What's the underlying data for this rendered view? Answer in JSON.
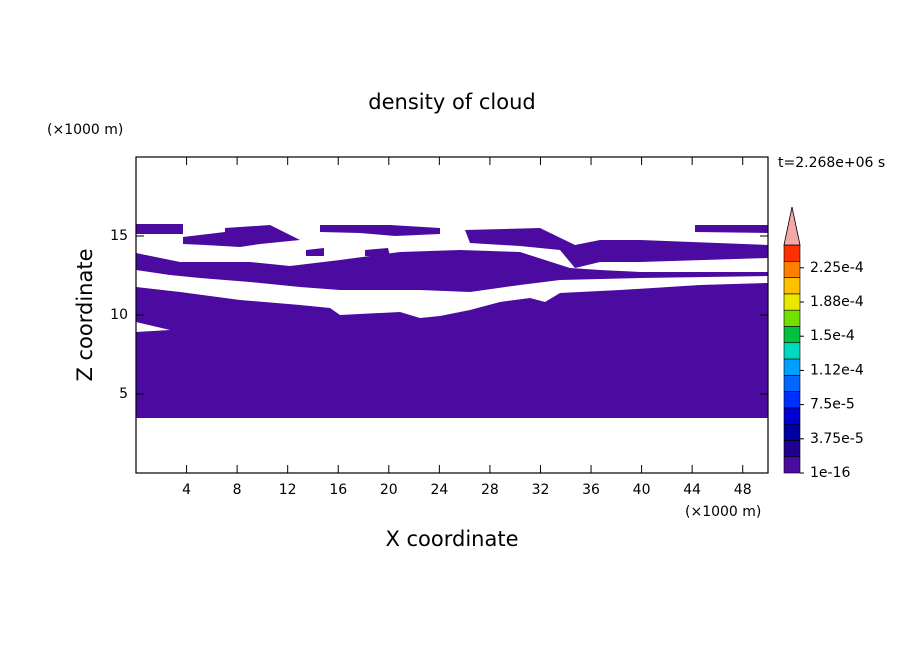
{
  "chart_data": {
    "type": "contour",
    "title": "density of cloud",
    "x_label": "X coordinate",
    "y_label": "Z coordinate",
    "x_unit_label": "(×1000 m)",
    "y_unit_label": "(×1000 m)",
    "time_label": "t=2.268e+06 s",
    "xlim": [
      0,
      50
    ],
    "ylim": [
      0,
      20
    ],
    "xticks": [
      4,
      8,
      12,
      16,
      20,
      24,
      28,
      32,
      36,
      40,
      44,
      48
    ],
    "yticks": [
      5,
      10,
      15
    ],
    "colorbar": {
      "lim": [
        0,
        0.00025
      ],
      "colors": [
        "#4b0aa0",
        "#200090",
        "#0000a0",
        "#0000d0",
        "#0030ff",
        "#0068ff",
        "#00a0ff",
        "#00d8c0",
        "#00c040",
        "#70e000",
        "#e8e800",
        "#ffc000",
        "#ff8000",
        "#ff3000"
      ],
      "extend_color": "#f4a8a8",
      "ticks": [
        1e-16,
        {
          "value": 3.75e-05,
          "label": "3.75e-5"
        },
        {
          "value": 7.5e-05,
          "label": "7.5e-5"
        },
        {
          "value": 0.0001125,
          "label": "1.12e-4"
        },
        {
          "value": 0.00015,
          "label": "1.5e-4"
        },
        {
          "value": 0.0001875,
          "label": "1.88e-4"
        },
        {
          "value": 0.000225,
          "label": "2.25e-4"
        }
      ]
    }
  }
}
